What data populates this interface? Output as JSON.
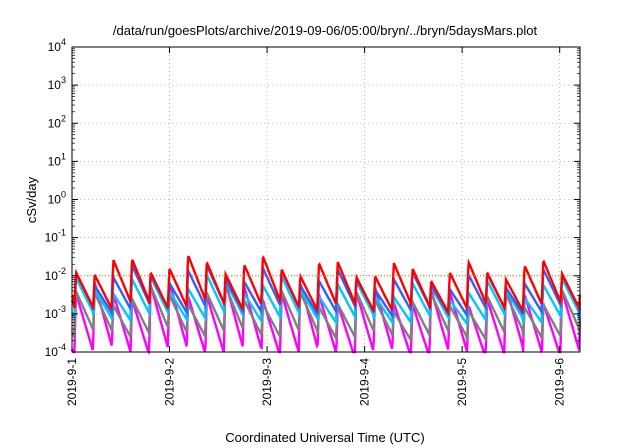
{
  "chart_data": {
    "type": "line",
    "title": "/data/run/goesPlots/archive/2019-09-06/05:00/bryn/../bryn/5daysMars.plot",
    "xlabel": "Coordinated Universal Time (UTC)",
    "ylabel": "cSv/day",
    "yscale": "log",
    "ylim": [
      0.0001,
      10000
    ],
    "xlim": [
      "2019-09-01T00:00",
      "2019-09-06T05:00"
    ],
    "grid": true,
    "x_ticks": [
      "2019-9-1",
      "2019-9-2",
      "2019-9-3",
      "2019-9-4",
      "2019-9-5",
      "2019-9-6"
    ],
    "y_ticks": [
      {
        "value": 0.0001,
        "base": "10",
        "exp": "-4"
      },
      {
        "value": 0.001,
        "base": "10",
        "exp": "-3"
      },
      {
        "value": 0.01,
        "base": "10",
        "exp": "-2"
      },
      {
        "value": 0.1,
        "base": "10",
        "exp": "-1"
      },
      {
        "value": 1,
        "base": "10",
        "exp": "0"
      },
      {
        "value": 10,
        "base": "10",
        "exp": "1"
      },
      {
        "value": 100,
        "base": "10",
        "exp": "2"
      },
      {
        "value": 1000,
        "base": "10",
        "exp": "3"
      },
      {
        "value": 10000,
        "base": "10",
        "exp": "4"
      }
    ],
    "period_hours": 4.6,
    "series": [
      {
        "color": "#ff00ff",
        "peak": 0.0035,
        "trough": 0.0001
      },
      {
        "color": "#808080",
        "peak": 0.0025,
        "trough": 0.0003
      },
      {
        "color": "#00c8ff",
        "peak": 0.005,
        "trough": 0.0008
      },
      {
        "color": "#3060ff",
        "peak": 0.009,
        "trough": 0.0013
      },
      {
        "color": "#ff0000",
        "peak": 0.016,
        "trough": 0.0016
      }
    ],
    "reference_line": {
      "value": 0.01,
      "color": "#ff6600"
    }
  }
}
